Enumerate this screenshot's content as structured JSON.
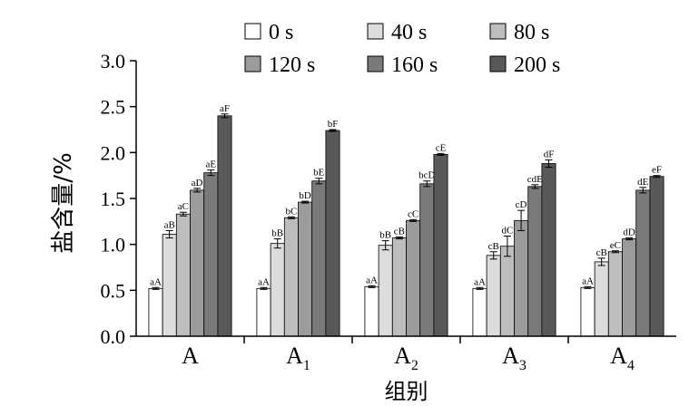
{
  "chart_data": {
    "type": "bar",
    "ylabel": "盐含量/%",
    "xlabel": "组别",
    "ylim": [
      0.0,
      3.0
    ],
    "yticks": [
      "0.0",
      "0.5",
      "1.0",
      "1.5",
      "2.0",
      "2.5",
      "3.0"
    ],
    "grid": false,
    "legend_position": "top",
    "categories": [
      {
        "base": "A",
        "sub": ""
      },
      {
        "base": "A",
        "sub": "1"
      },
      {
        "base": "A",
        "sub": "2"
      },
      {
        "base": "A",
        "sub": "3"
      },
      {
        "base": "A",
        "sub": "4"
      }
    ],
    "series": [
      {
        "name": "0 s",
        "color": "#ffffff",
        "values": [
          0.52,
          0.52,
          0.54,
          0.52,
          0.53
        ],
        "errors": [
          0.01,
          0.01,
          0.01,
          0.01,
          0.01
        ],
        "labels": [
          "aA",
          "aA",
          "aA",
          "aA",
          "aA"
        ]
      },
      {
        "name": "40 s",
        "color": "#dcdcdc",
        "values": [
          1.11,
          1.01,
          0.99,
          0.88,
          0.81
        ],
        "errors": [
          0.04,
          0.05,
          0.05,
          0.04,
          0.04
        ],
        "labels": [
          "aB",
          "bB",
          "bB",
          "cB",
          "cB"
        ]
      },
      {
        "name": "80 s",
        "color": "#bdbdbd",
        "values": [
          1.33,
          1.29,
          1.07,
          0.98,
          0.92
        ],
        "errors": [
          0.02,
          0.01,
          0.01,
          0.11,
          0.01
        ],
        "labels": [
          "aC",
          "bC",
          "cB",
          "dC",
          "eC"
        ]
      },
      {
        "name": "120 s",
        "color": "#9b9b9b",
        "values": [
          1.59,
          1.46,
          1.26,
          1.26,
          1.06
        ],
        "errors": [
          0.02,
          0.01,
          0.01,
          0.11,
          0.01
        ],
        "labels": [
          "aD",
          "bD",
          "cC",
          "cD",
          "dD"
        ]
      },
      {
        "name": "160 s",
        "color": "#7a7a7a",
        "values": [
          1.78,
          1.69,
          1.66,
          1.63,
          1.59
        ],
        "errors": [
          0.03,
          0.03,
          0.03,
          0.02,
          0.03
        ],
        "labels": [
          "aE",
          "bE",
          "bcD",
          "cdE",
          "dE"
        ]
      },
      {
        "name": "200 s",
        "color": "#595959",
        "values": [
          2.4,
          2.24,
          1.98,
          1.88,
          1.74
        ],
        "errors": [
          0.02,
          0.01,
          0.01,
          0.04,
          0.01
        ],
        "labels": [
          "aF",
          "bF",
          "cE",
          "dF",
          "eF"
        ]
      }
    ]
  }
}
